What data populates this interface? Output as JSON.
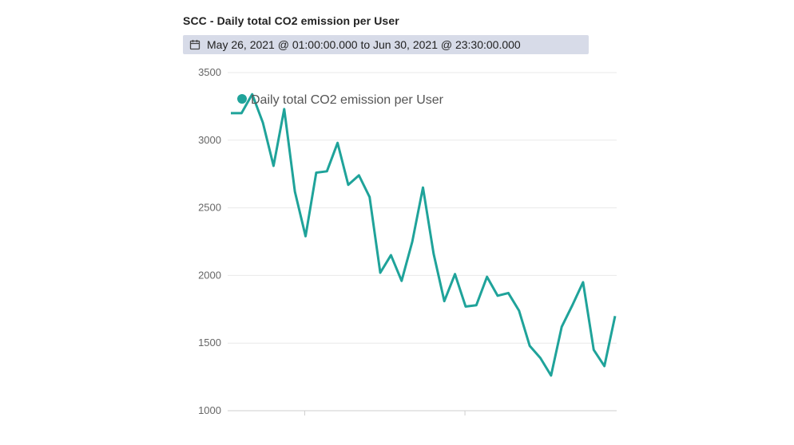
{
  "panel": {
    "title": "SCC - Daily total CO2 emission per User",
    "date_range": "May 26, 2021 @ 01:00:00.000 to Jun 30, 2021 @ 23:30:00.000",
    "icon": "calendar-icon"
  },
  "chart_data": {
    "type": "line",
    "title": "SCC - Daily total CO2 emission per User",
    "xlabel": "",
    "ylabel": "",
    "ylim": [
      1000,
      3500
    ],
    "yticks": [
      3500,
      3000,
      2500,
      2000,
      1500,
      1000
    ],
    "grid": true,
    "legend": {
      "placement": "top-left",
      "entries": [
        "Daily total CO2 emission per User"
      ]
    },
    "color": "#1fa39a",
    "series": [
      {
        "name": "Daily total CO2 emission per User",
        "values": [
          3200,
          3200,
          3340,
          3130,
          2810,
          3230,
          2620,
          2290,
          2760,
          2770,
          2980,
          2670,
          2740,
          2580,
          2020,
          2150,
          1960,
          2250,
          2650,
          2160,
          1810,
          2010,
          1770,
          1780,
          1990,
          1850,
          1870,
          1740,
          1480,
          1390,
          1260,
          1620,
          1780,
          1950,
          1450,
          1330,
          1700
        ]
      }
    ]
  }
}
